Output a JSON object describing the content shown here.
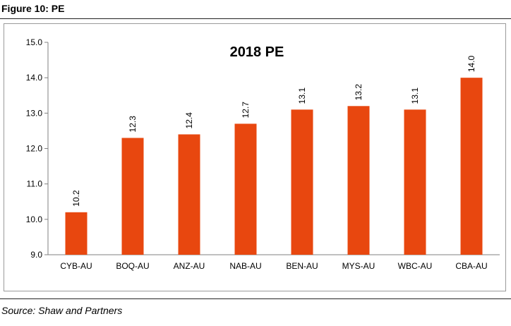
{
  "figure_title": "Figure 10: PE",
  "source": "Source: Shaw and Partners",
  "colors": {
    "bar": "#e8470f",
    "axis": "#808080",
    "text": "#000000"
  },
  "chart_data": {
    "type": "bar",
    "title": "2018 PE",
    "xlabel": "",
    "ylabel": "",
    "categories": [
      "CYB-AU",
      "BOQ-AU",
      "ANZ-AU",
      "NAB-AU",
      "BEN-AU",
      "MYS-AU",
      "WBC-AU",
      "CBA-AU"
    ],
    "values": [
      10.2,
      12.3,
      12.4,
      12.7,
      13.1,
      13.2,
      13.1,
      14.0
    ],
    "value_labels": [
      "10.2",
      "12.3",
      "12.4",
      "12.7",
      "13.1",
      "13.2",
      "13.1",
      "14.0"
    ],
    "ylim": [
      9.0,
      15.0
    ],
    "yticks": [
      9.0,
      10.0,
      11.0,
      12.0,
      13.0,
      14.0,
      15.0
    ],
    "ytick_labels": [
      "9.0",
      "10.0",
      "11.0",
      "12.0",
      "13.0",
      "14.0",
      "15.0"
    ],
    "grid": false,
    "legend": "none"
  }
}
